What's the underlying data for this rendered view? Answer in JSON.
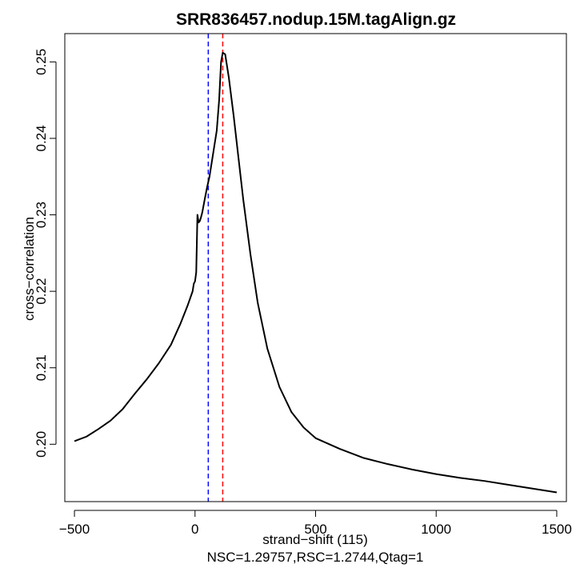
{
  "chart_data": {
    "type": "line",
    "title": "SRR836457.nodup.15M.tagAlign.gz",
    "xlabel": "strand−shift (115)",
    "ylabel": "cross−correlation",
    "subtitle": "NSC=1.29757,RSC=1.2744,Qtag=1",
    "xlim": [
      -540,
      1540
    ],
    "ylim": [
      0.1925,
      0.2537
    ],
    "x_ticks": [
      -500,
      0,
      500,
      1000,
      1500
    ],
    "x_tick_labels": [
      "−500",
      "0",
      "500",
      "1000",
      "1500"
    ],
    "y_ticks": [
      0.2,
      0.21,
      0.22,
      0.23,
      0.24,
      0.25
    ],
    "y_tick_labels": [
      "0.20",
      "0.21",
      "0.22",
      "0.23",
      "0.24",
      "0.25"
    ],
    "vlines": [
      {
        "x": 55,
        "color": "#0000ff",
        "style": "dashed"
      },
      {
        "x": 115,
        "color": "#ff0000",
        "style": "dashed"
      }
    ],
    "series": [
      {
        "color": "#000000",
        "x": [
          -500,
          -450,
          -400,
          -350,
          -300,
          -250,
          -200,
          -150,
          -100,
          -60,
          -30,
          -10,
          -5,
          0,
          5,
          10,
          15,
          20,
          25,
          30,
          40,
          50,
          60,
          75,
          90,
          100,
          108,
          115,
          125,
          140,
          160,
          180,
          200,
          230,
          260,
          300,
          350,
          400,
          450,
          500,
          600,
          700,
          800,
          900,
          1000,
          1100,
          1200,
          1300,
          1400,
          1500
        ],
        "y": [
          0.2004,
          0.201,
          0.202,
          0.2031,
          0.2046,
          0.2066,
          0.2085,
          0.2106,
          0.213,
          0.2158,
          0.2182,
          0.22,
          0.221,
          0.2213,
          0.2225,
          0.23,
          0.229,
          0.2292,
          0.2297,
          0.2303,
          0.232,
          0.2336,
          0.235,
          0.238,
          0.241,
          0.245,
          0.25,
          0.2512,
          0.251,
          0.248,
          0.243,
          0.2375,
          0.232,
          0.2248,
          0.2185,
          0.2125,
          0.2075,
          0.2042,
          0.2022,
          0.2008,
          0.1994,
          0.1982,
          0.1974,
          0.1967,
          0.1961,
          0.1956,
          0.1952,
          0.1947,
          0.1942,
          0.1937
        ]
      }
    ]
  }
}
